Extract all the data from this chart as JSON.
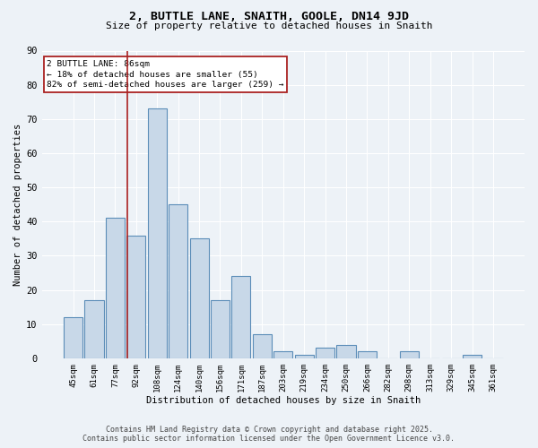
{
  "title": "2, BUTTLE LANE, SNAITH, GOOLE, DN14 9JD",
  "subtitle": "Size of property relative to detached houses in Snaith",
  "xlabel": "Distribution of detached houses by size in Snaith",
  "ylabel": "Number of detached properties",
  "categories": [
    "45sqm",
    "61sqm",
    "77sqm",
    "92sqm",
    "108sqm",
    "124sqm",
    "140sqm",
    "156sqm",
    "171sqm",
    "187sqm",
    "203sqm",
    "219sqm",
    "234sqm",
    "250sqm",
    "266sqm",
    "282sqm",
    "298sqm",
    "313sqm",
    "329sqm",
    "345sqm",
    "361sqm"
  ],
  "values": [
    12,
    17,
    41,
    36,
    73,
    45,
    35,
    17,
    24,
    7,
    2,
    1,
    3,
    4,
    2,
    0,
    2,
    0,
    0,
    1,
    0
  ],
  "bar_color": "#c8d8e8",
  "bar_edge_color": "#5b8db8",
  "highlight_line_color": "#aa2222",
  "annotation_title": "2 BUTTLE LANE: 86sqm",
  "annotation_line1": "← 18% of detached houses are smaller (55)",
  "annotation_line2": "82% of semi-detached houses are larger (259) →",
  "annotation_box_color": "#aa2222",
  "ylim": [
    0,
    90
  ],
  "yticks": [
    0,
    10,
    20,
    30,
    40,
    50,
    60,
    70,
    80,
    90
  ],
  "background_color": "#edf2f7",
  "grid_color": "#ffffff",
  "footer_line1": "Contains HM Land Registry data © Crown copyright and database right 2025.",
  "footer_line2": "Contains public sector information licensed under the Open Government Licence v3.0."
}
